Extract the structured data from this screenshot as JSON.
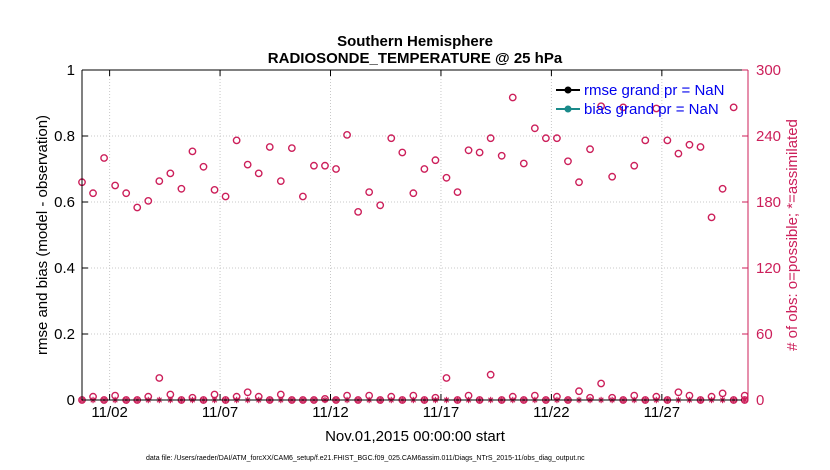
{
  "chart_data": {
    "type": "scatter",
    "title": "Southern Hemisphere",
    "subtitle": "RADIOSONDE_TEMPERATURE @ 25 hPa",
    "xlabel": "Nov.01,2015 00:00:00 start",
    "ylabel_left": "rmse and bias (model - observation)",
    "ylabel_right": "# of obs: o=possible; *=assimilated",
    "footnote": "data file: /Users/raeder/DAI/ATM_forcXX/CAM6_setup/f.e21.FHIST_BGC.f09_025.CAM6assim.011/Diags_NTrS_2015-11/obs_diag_output.nc",
    "x_range": [
      0.75,
      30.9
    ],
    "x_ticks": [
      {
        "x": 2,
        "label": "11/02"
      },
      {
        "x": 7,
        "label": "11/07"
      },
      {
        "x": 12,
        "label": "11/12"
      },
      {
        "x": 17,
        "label": "11/17"
      },
      {
        "x": 22,
        "label": "11/22"
      },
      {
        "x": 27,
        "label": "11/27"
      }
    ],
    "ylim_left": [
      0,
      1
    ],
    "y_ticks_left": [
      "0",
      "0.2",
      "0.4",
      "0.6",
      "0.8",
      "1"
    ],
    "ylim_right": [
      0,
      300
    ],
    "y_ticks_right": [
      "0",
      "60",
      "120",
      "180",
      "240",
      "300"
    ],
    "grid": true,
    "legend": {
      "position": "top-right",
      "entries": [
        "rmse grand pr = NaN",
        "bias grand pr = NaN"
      ]
    },
    "colors": {
      "rmse": "#000000",
      "bias": "#1a8a8a",
      "obs": "#cc1f5a",
      "right_axis": "#cc1f5a"
    },
    "series": [
      {
        "name": "rmse",
        "axis": "left",
        "x": [],
        "values": []
      },
      {
        "name": "bias",
        "axis": "left",
        "x": [],
        "values": []
      },
      {
        "name": "obs possible (high)",
        "axis": "right",
        "marker": "o",
        "x": [
          0.75,
          1.25,
          1.75,
          2.25,
          2.75,
          3.25,
          3.75,
          4.25,
          4.75,
          5.25,
          5.75,
          6.25,
          6.75,
          7.25,
          7.75,
          8.25,
          8.75,
          9.25,
          9.75,
          10.25,
          10.75,
          11.25,
          11.75,
          12.25,
          12.75,
          13.25,
          13.75,
          14.25,
          14.75,
          15.25,
          15.75,
          16.25,
          16.75,
          17.25,
          17.75,
          18.25,
          18.75,
          19.25,
          19.75,
          20.25,
          20.75,
          21.25,
          21.75,
          22.25,
          22.75,
          23.25,
          23.75,
          24.25,
          24.75,
          25.25,
          25.75,
          26.25,
          26.75,
          27.25,
          27.75,
          28.25,
          28.75,
          29.25,
          29.75,
          30.25,
          30.75
        ],
        "values": [
          198,
          188,
          220,
          195,
          188,
          175,
          181,
          199,
          206,
          192,
          226,
          212,
          191,
          185,
          236,
          214,
          206,
          230,
          199,
          229,
          185,
          213,
          213,
          210,
          241,
          171,
          189,
          177,
          238,
          225,
          188,
          210,
          218,
          202,
          189,
          227,
          225,
          238,
          222,
          275,
          215,
          247,
          238,
          238,
          217,
          198,
          228,
          267,
          203,
          266,
          213,
          236,
          265,
          236,
          224,
          232,
          230,
          166,
          192,
          266,
          0
        ]
      },
      {
        "name": "obs possible (low)",
        "axis": "right",
        "marker": "o",
        "x": [
          0.75,
          1.25,
          1.75,
          2.25,
          2.75,
          3.25,
          3.75,
          4.25,
          4.75,
          5.25,
          5.75,
          6.25,
          6.75,
          7.25,
          7.75,
          8.25,
          8.75,
          9.25,
          9.75,
          10.25,
          10.75,
          11.25,
          11.75,
          12.25,
          12.75,
          13.25,
          13.75,
          14.25,
          14.75,
          15.25,
          15.75,
          16.25,
          16.75,
          17.25,
          17.75,
          18.25,
          18.75,
          19.25,
          19.75,
          20.25,
          20.75,
          21.25,
          21.75,
          22.25,
          22.75,
          23.25,
          23.75,
          24.25,
          24.75,
          25.25,
          25.75,
          26.25,
          26.75,
          27.25,
          27.75,
          28.25,
          28.75,
          29.25,
          29.75,
          30.25,
          30.75
        ],
        "values": [
          0,
          3,
          0,
          4,
          0,
          0,
          3,
          20,
          5,
          0,
          2,
          0,
          5,
          0,
          3,
          7,
          3,
          0,
          5,
          0,
          0,
          0,
          1,
          0,
          4,
          0,
          4,
          0,
          3,
          0,
          4,
          0,
          2,
          20,
          0,
          4,
          0,
          23,
          0,
          3,
          0,
          4,
          0,
          3,
          0,
          8,
          2,
          15,
          2,
          0,
          4,
          0,
          3,
          0,
          7,
          4,
          0,
          3,
          6,
          0,
          4
        ]
      },
      {
        "name": "assimilated",
        "axis": "right",
        "marker": "*",
        "x": [
          0.75,
          1.25,
          1.75,
          2.25,
          2.75,
          3.25,
          3.75,
          4.25,
          4.75,
          5.25,
          5.75,
          6.25,
          6.75,
          7.25,
          7.75,
          8.25,
          8.75,
          9.25,
          9.75,
          10.25,
          10.75,
          11.25,
          11.75,
          12.25,
          12.75,
          13.25,
          13.75,
          14.25,
          14.75,
          15.25,
          15.75,
          16.25,
          16.75,
          17.25,
          17.75,
          18.25,
          18.75,
          19.25,
          19.75,
          20.25,
          20.75,
          21.25,
          21.75,
          22.25,
          22.75,
          23.25,
          23.75,
          24.25,
          24.75,
          25.25,
          25.75,
          26.25,
          26.75,
          27.25,
          27.75,
          28.25,
          28.75,
          29.25,
          29.75,
          30.25,
          30.75
        ],
        "values": [
          0,
          0,
          0,
          0,
          0,
          0,
          0,
          0,
          0,
          0,
          0,
          0,
          0,
          0,
          0,
          0,
          0,
          0,
          0,
          0,
          0,
          0,
          0,
          0,
          0,
          0,
          0,
          0,
          0,
          0,
          0,
          0,
          0,
          0,
          0,
          0,
          0,
          0,
          0,
          0,
          0,
          0,
          0,
          0,
          0,
          0,
          0,
          0,
          0,
          0,
          0,
          0,
          0,
          0,
          0,
          0,
          0,
          0,
          0,
          0,
          0
        ]
      }
    ]
  }
}
